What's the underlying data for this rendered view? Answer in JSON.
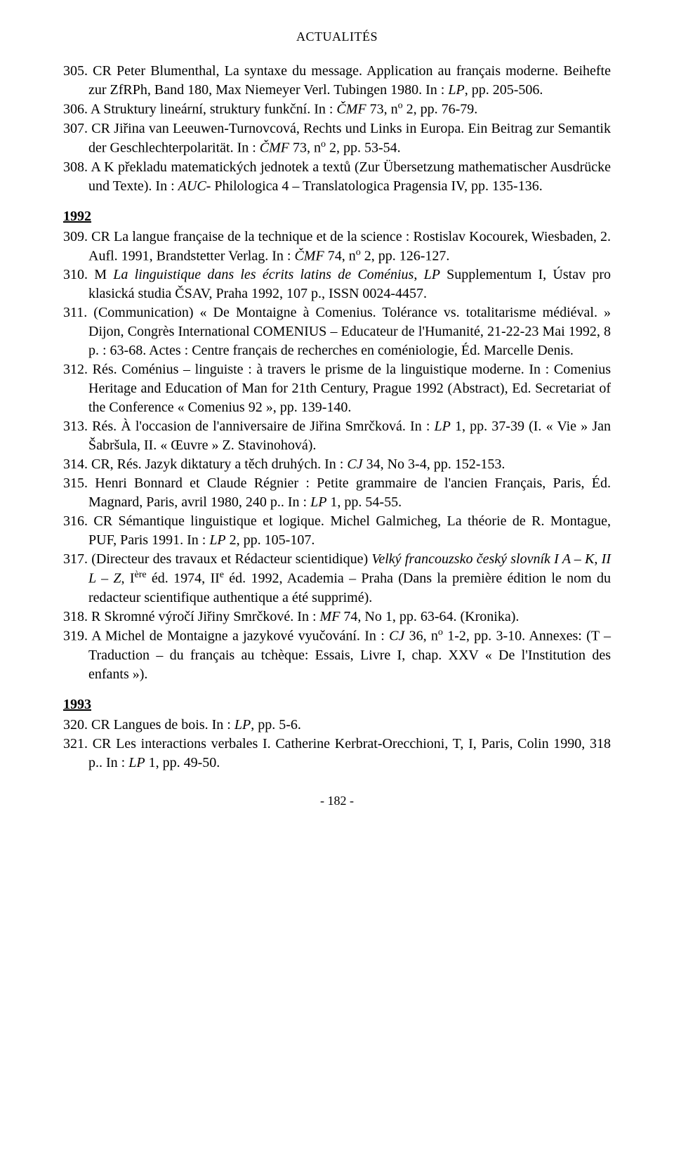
{
  "header": "ACTUALITÉS",
  "entries_block1": [
    "305. CR     Peter Blumenthal, La syntaxe du message. Application au français moderne. Beihefte zur ZfRPh, Band 180, Max Niemeyer Verl. Tubingen 1980. In : <i>LP</i>, pp. 205-506.",
    "306. A       Struktury lineární, struktury funkční. In : <i>ČMF</i> 73, n<sup>o</sup> 2, pp. 76-79.",
    "307. CR     Jiřina van Leeuwen-Turnovcová, Rechts und Links in Europa. Ein Beitrag zur Semantik der Geschlechterpolarität. In : <i>ČMF</i> 73, n<sup>o</sup> 2, pp. 53-54.",
    "308. A       K překladu matematických jednotek a textů (Zur Übersetzung mathematischer Ausdrücke und Texte). In : <i>AUC</i>- Philologica 4 – Translatologica Pragensia IV, pp. 135-136."
  ],
  "year_1992": "1992",
  "entries_block2": [
    "309. CR     La langue française de la technique et de la science : Rostislav Kocourek, Wiesbaden, 2. Aufl. 1991, Brandstetter Verlag. In : <i>ČMF</i> 74, n<sup>o</sup> 2, pp. 126-127.",
    "310. M      <i>La linguistique dans les écrits latins de Coménius</i>, <i>LP</i> Supplementum I, Ústav pro klasická studia ČSAV, Praha 1992, 107 p., ISSN 0024-4457.",
    "311. (Communication) « De Montaigne à Comenius. Tolérance vs. totalitarisme médiéval. » Dijon, Congrès International COMENIUS – Educateur de l'Humanité, 21-22-23 Mai 1992, 8 p. : 63-68. Actes : Centre français de recherches en coméniologie, Éd. Marcelle Denis.",
    "312. Rés.    Coménius – linguiste : à travers le prisme de la linguistique moderne. In : Comenius Heritage and Education of Man for 21th Century, Prague 1992 (Abstract), Ed. Secretariat of the Conference « Comenius 92 », pp. 139-140.",
    "313. Rés.    À l'occasion de l'anniversaire de Jiřina Smrčková. In : <i>LP</i> 1, pp. 37-39 (I. « Vie » Jan Šabršula, II. « Œuvre » Z. Stavinohová).",
    "314. CR, Rés.  Jazyk diktatury a těch druhých. In : <i>CJ</i> 34, No 3-4, pp. 152-153.",
    "315.            Henri Bonnard et Claude Régnier : Petite grammaire de l'ancien Français, Paris, Éd.  Magnard, Paris, avril 1980, 240 p.. In : <i>LP</i> 1, pp. 54-55.",
    "316. CR     Sémantique linguistique et logique. Michel Galmicheg, La théorie de R. Montague, PUF, Paris 1991. In : <i>LP</i> 2, pp. 105-107.",
    "317. (Directeur des travaux et Rédacteur scientidique) <i>Velký francouzsko český slovník I A – K</i>, <i>II L – Z</i>, I<sup>ère</sup> éd. 1974, II<sup>e</sup> éd. 1992, Academia – Praha (Dans la première édition le nom du redacteur scientifique authentique a été supprimé).",
    "318. R       Skromné výročí Jiřiny Smrčkové. In : <i>MF</i> 74, No 1, pp. 63-64. (Kronika).",
    "319. A       Michel de Montaigne a jazykové vyučování. In : <i>CJ</i> 36, n<sup>o</sup> 1-2, pp. 3-10. Annexes: (T – Traduction – du français au tchèque: Essais, Livre I, chap. XXV « De l'Institution des enfants »)."
  ],
  "year_1993": "1993",
  "entries_block3": [
    "320. CR     Langues de bois. In : <i>LP</i>, pp. 5-6.",
    "321. CR     Les interactions verbales I. Catherine Kerbrat-Orecchioni, T, I, Paris, Colin 1990, 318 p.. In : <i>LP</i> 1, pp. 49-50."
  ],
  "pagenum": "- 182 -"
}
